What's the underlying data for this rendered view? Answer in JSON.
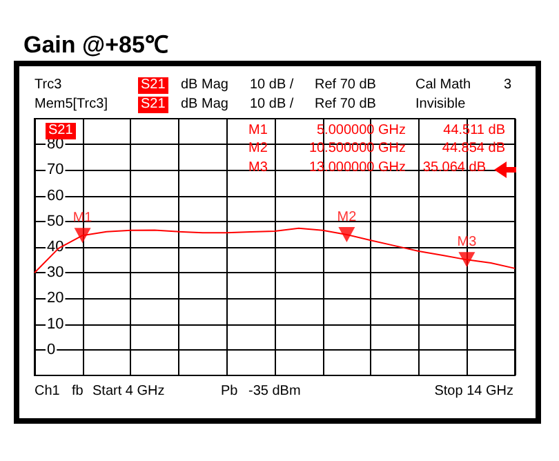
{
  "chart_data": {
    "type": "line",
    "title": "Gain @+85℃",
    "annotations": [
      "Trc3",
      "S21",
      "dB Mag",
      "10 dB /",
      "Ref 70 dB",
      "Cal Math",
      "3",
      "Mem5[Trc3]",
      "S21",
      "dB Mag",
      "10 dB /",
      "Ref 70 dB",
      "Invisible",
      "S21",
      "M1",
      "5.000000 GHz",
      "44.511 dB",
      "M2",
      "10.500000 GHz",
      "44.854 dB",
      "M3",
      "13.000000 GHz",
      "35.064 dB",
      "Ch1",
      "fb",
      "Start 4 GHz",
      "Pb",
      "-35 dBm",
      "Stop 14 GHz",
      {
        "text": "M1",
        "y": 44.511
      },
      {
        "text": "M2",
        "y": 44.854
      },
      {
        "text": "M3",
        "y": 35.064
      }
    ],
    "categories": [
      null,
      null,
      null,
      null,
      null,
      null,
      null,
      null,
      null,
      null,
      null,
      null,
      null,
      null,
      null,
      null,
      null,
      null,
      null,
      null,
      null
    ],
    "series": [
      {
        "color": "#ff0000",
        "values": [
          30,
          39.5,
          44.511,
          46,
          46.5,
          46.6,
          46,
          45.6,
          45.6,
          45.9,
          46.2,
          47.3,
          46.5,
          44.854,
          42.6,
          40.5,
          38.4,
          36.8,
          35.064,
          33.8,
          31.7
        ]
      },
      {
        "type": "scatter",
        "marker": "triangle",
        "color": "#ff0000",
        "values": [
          null,
          null,
          44.511,
          null,
          null,
          null,
          null,
          null,
          null,
          null,
          null,
          null,
          null,
          44.854,
          null,
          null,
          null,
          null,
          35.064,
          null,
          null
        ]
      }
    ],
    "ylim": [
      -10,
      90
    ],
    "yticks": [
      0,
      10,
      20,
      30,
      40,
      50,
      60,
      70,
      80
    ],
    "tick_labels": "y",
    "grid": true,
    "marker": "none",
    "line_style": "solid"
  }
}
